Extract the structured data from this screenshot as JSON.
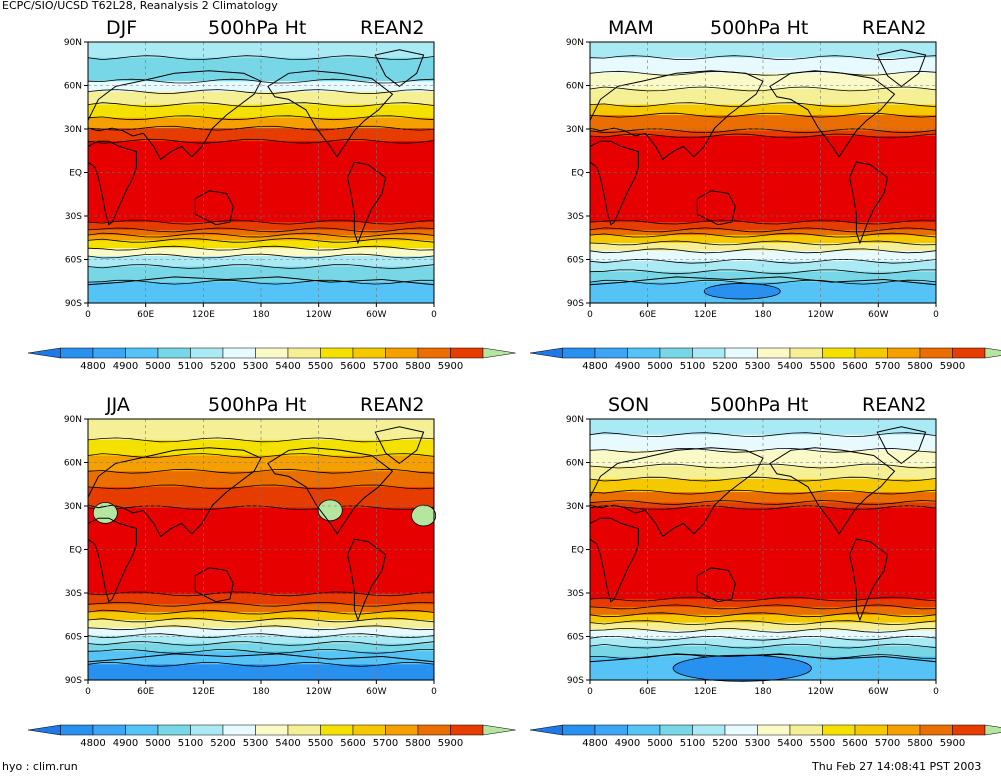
{
  "header": {
    "title": "ECPC/SIO/UCSD T62L28, Reanalysis 2 Climatology",
    "footer_left": "hyo : clim.run",
    "footer_right": "Thu Feb 27 14:08:41 PST 2003"
  },
  "panels": [
    {
      "season": "DJF",
      "variable": "500hPa Ht",
      "source": "REAN2"
    },
    {
      "season": "MAM",
      "variable": "500hPa Ht",
      "source": "REAN2"
    },
    {
      "season": "JJA",
      "variable": "500hPa Ht",
      "source": "REAN2"
    },
    {
      "season": "SON",
      "variable": "500hPa Ht",
      "source": "REAN2"
    }
  ],
  "lat_ticks": [
    "90N",
    "60N",
    "30N",
    "EQ",
    "30S",
    "60S",
    "90S"
  ],
  "lon_ticks": [
    "0",
    "60E",
    "120E",
    "180",
    "120W",
    "60W",
    "0"
  ],
  "colorbar": {
    "labels": [
      "4800",
      "4900",
      "5000",
      "5100",
      "5200",
      "5300",
      "5400",
      "5500",
      "5600",
      "5700",
      "5800",
      "5900"
    ],
    "colors": [
      "#1e78e6",
      "#2891f0",
      "#3ca5f5",
      "#55c3f5",
      "#78d7e6",
      "#aaeaf5",
      "#e6faff",
      "#fafac8",
      "#f5f096",
      "#f5e100",
      "#f5c800",
      "#f5a000",
      "#eb6e00",
      "#e63c00",
      "#e60000",
      "#b4e6a0"
    ]
  },
  "colors": {
    "ocean_red": "#e60000",
    "coast": "#000000"
  }
}
